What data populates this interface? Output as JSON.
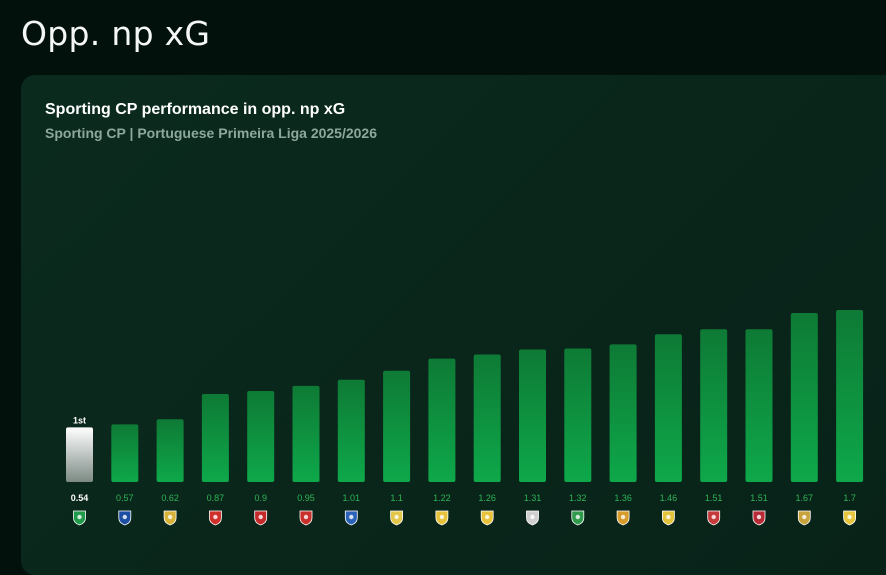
{
  "page": {
    "title": "Opp. np xG"
  },
  "chart_data": {
    "type": "bar",
    "title": "Sporting CP performance in opp. np xG",
    "subtitle": "Sporting CP | Portuguese Primeira Liga 2025/2026",
    "values": [
      0.54,
      0.57,
      0.62,
      0.87,
      0.9,
      0.95,
      1.01,
      1.1,
      1.22,
      1.26,
      1.31,
      1.32,
      1.36,
      1.46,
      1.51,
      1.51,
      1.67,
      1.7
    ],
    "value_labels": [
      "0.54",
      "0.57",
      "0.62",
      "0.87",
      "0.9",
      "0.95",
      "1.01",
      "1.1",
      "1.22",
      "1.26",
      "1.31",
      "1.32",
      "1.36",
      "1.46",
      "1.51",
      "1.51",
      "1.67",
      "1.7"
    ],
    "highlight_index": 0,
    "rank_label": "1st",
    "ylim": [
      0,
      1.7
    ],
    "team_icons": [
      {
        "name": "sporting-crest-icon",
        "color": "#1f9a4a"
      },
      {
        "name": "porto-crest-icon",
        "color": "#1c4fa3"
      },
      {
        "name": "famalicao-crest-icon",
        "color": "#d7b33a"
      },
      {
        "name": "benfica-crest-icon",
        "color": "#d0302a"
      },
      {
        "name": "braga-crest-icon",
        "color": "#c42a2a"
      },
      {
        "name": "santa-clara-crest-icon",
        "color": "#c8312b"
      },
      {
        "name": "gil-vicente-crest-icon",
        "color": "#2a62b8"
      },
      {
        "name": "estoril-crest-icon",
        "color": "#e2c74a"
      },
      {
        "name": "tondela-alt-crest-icon",
        "color": "#e6c23a"
      },
      {
        "name": "arouca-crest-icon",
        "color": "#e9c23c"
      },
      {
        "name": "vitoria-crest-icon",
        "color": "#cfcfcf"
      },
      {
        "name": "tondela-crest-icon",
        "color": "#2f9a4a"
      },
      {
        "name": "alverca-crest-icon",
        "color": "#d79b2a"
      },
      {
        "name": "nacional-crest-icon",
        "color": "#e3c33a"
      },
      {
        "name": "casa-pia-crest-icon",
        "color": "#c53a3a"
      },
      {
        "name": "moreirense-crest-icon",
        "color": "#b82a35"
      },
      {
        "name": "rio-ave-crest-icon",
        "color": "#c8a23a"
      },
      {
        "name": "avs-crest-icon",
        "color": "#e6c63e"
      }
    ],
    "colors": {
      "bar_top": "#0e7a35",
      "bar_bottom": "#0ea84a",
      "highlight_top": "#ffffff",
      "highlight_bottom": "#7d8a84",
      "value_label": "#2fb457",
      "highlight_value_label": "#ffffff"
    }
  }
}
